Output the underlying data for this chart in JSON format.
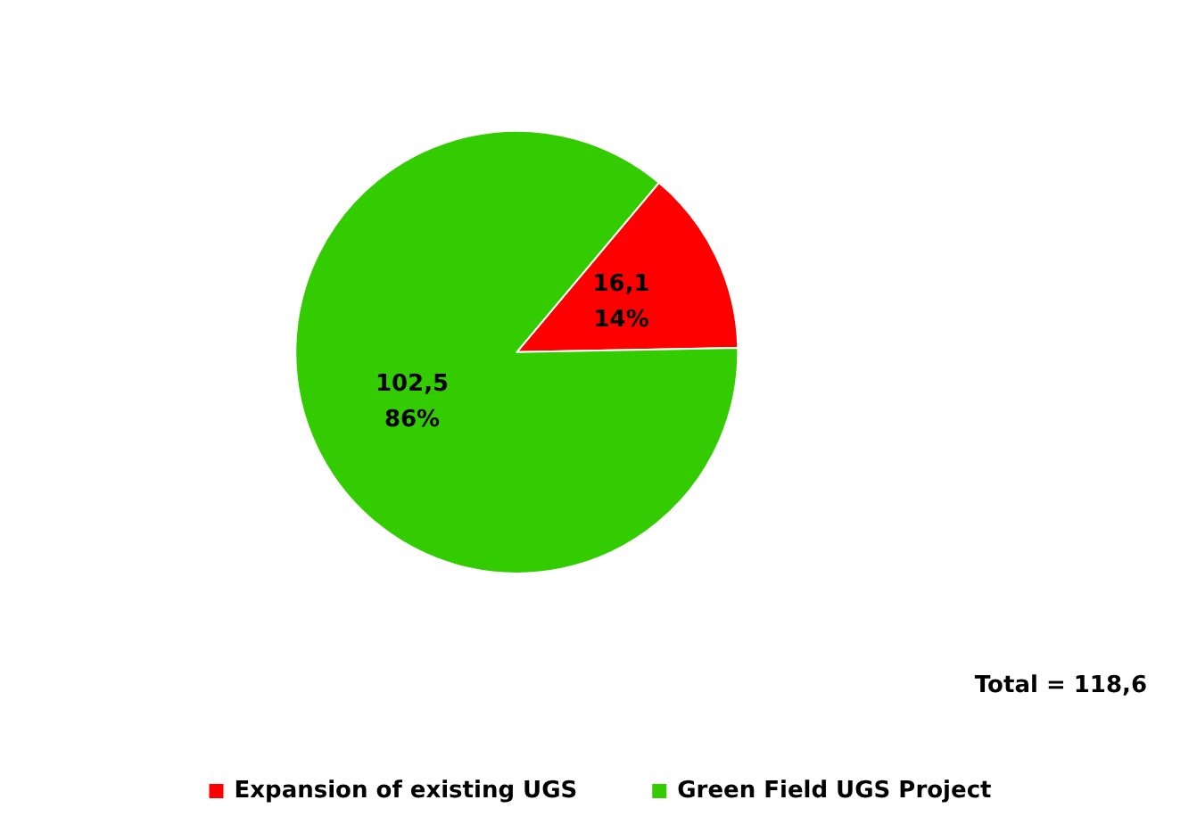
{
  "chart_data": {
    "type": "pie",
    "categories": [
      "Expansion of existing UGS",
      "Green Field UGS Project"
    ],
    "values": [
      16.1,
      102.5
    ],
    "colors": [
      "#ff0000",
      "#33cc00"
    ],
    "value_labels": [
      "16,1\n14%",
      "102,5\n86%"
    ],
    "annotations": [
      "Total = 118,6"
    ],
    "legend": "bottom"
  }
}
